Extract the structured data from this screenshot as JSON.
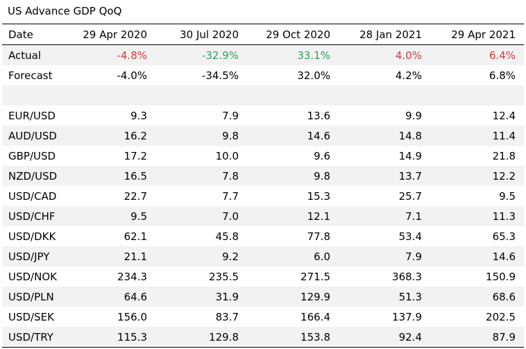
{
  "title": "US Advance GDP QoQ",
  "header": {
    "label": "Date",
    "dates": [
      "29 Apr 2020",
      "30 Jul 2020",
      "29 Oct 2020",
      "28 Jan 2021",
      "29 Apr 2021"
    ]
  },
  "actual": {
    "label": "Actual",
    "values": [
      "-4.8%",
      "-32.9%",
      "33.1%",
      "4.0%",
      "6.4%"
    ],
    "colors": [
      "#d0393b",
      "#2e9e5f",
      "#2e9e5f",
      "#d0393b",
      "#d0393b"
    ]
  },
  "forecast": {
    "label": "Forecast",
    "values": [
      "-4.0%",
      "-34.5%",
      "32.0%",
      "4.2%",
      "6.8%"
    ]
  },
  "pairs": [
    {
      "pair": "EUR/USD",
      "values": [
        "9.3",
        "7.9",
        "13.6",
        "9.9",
        "12.4"
      ]
    },
    {
      "pair": "AUD/USD",
      "values": [
        "16.2",
        "9.8",
        "14.6",
        "14.8",
        "11.4"
      ]
    },
    {
      "pair": "GBP/USD",
      "values": [
        "17.2",
        "10.0",
        "9.6",
        "14.9",
        "21.8"
      ]
    },
    {
      "pair": "NZD/USD",
      "values": [
        "16.5",
        "7.8",
        "9.8",
        "13.7",
        "12.2"
      ]
    },
    {
      "pair": "USD/CAD",
      "values": [
        "22.7",
        "7.7",
        "15.3",
        "25.7",
        "9.5"
      ]
    },
    {
      "pair": "USD/CHF",
      "values": [
        "9.5",
        "7.0",
        "12.1",
        "7.1",
        "11.3"
      ]
    },
    {
      "pair": "USD/DKK",
      "values": [
        "62.1",
        "45.8",
        "77.8",
        "53.4",
        "65.3"
      ]
    },
    {
      "pair": "USD/JPY",
      "values": [
        "21.1",
        "9.2",
        "6.0",
        "7.9",
        "14.6"
      ]
    },
    {
      "pair": "USD/NOK",
      "values": [
        "234.3",
        "235.5",
        "271.5",
        "368.3",
        "150.9"
      ]
    },
    {
      "pair": "USD/PLN",
      "values": [
        "64.6",
        "31.9",
        "129.9",
        "51.3",
        "68.6"
      ]
    },
    {
      "pair": "USD/SEK",
      "values": [
        "156.0",
        "83.7",
        "166.4",
        "137.9",
        "202.5"
      ]
    },
    {
      "pair": "USD/TRY",
      "values": [
        "115.3",
        "129.8",
        "153.8",
        "92.4",
        "87.9"
      ]
    }
  ]
}
